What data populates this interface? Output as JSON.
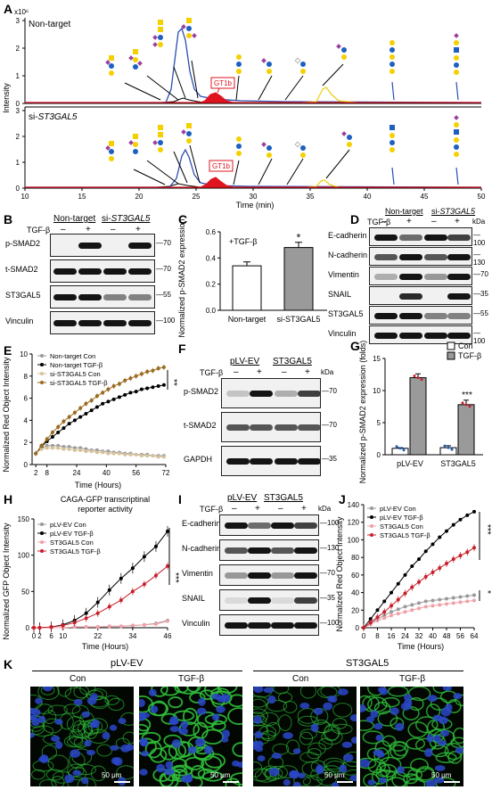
{
  "panels": {
    "A": {
      "letter": "A",
      "y_multiplier": "x10⁶",
      "ylabel": "Intensity",
      "xlabel": "Time (min)",
      "x_ticks": [
        "10",
        "15",
        "20",
        "25",
        "30",
        "35",
        "40",
        "45",
        "50"
      ],
      "y_ticks_top": [
        "0",
        "1",
        "2",
        "3"
      ],
      "y_ticks_bottom": [
        "0",
        "1",
        "2",
        "3"
      ],
      "top_label": "Non-target",
      "bottom_label_prefix": "si-",
      "bottom_label_gene": "ST3GAL5",
      "peak_label": "GT1b"
    },
    "B": {
      "letter": "B",
      "group1": "Non-target",
      "group2_prefix": "si-",
      "group2_gene": "ST3GAL5",
      "tgf_label": "TGF-β",
      "signs": [
        "–",
        "+",
        "–",
        "+"
      ],
      "rows": [
        {
          "name": "p-SMAD2",
          "kda": "70"
        },
        {
          "name": "t-SMAD2",
          "kda": "70"
        },
        {
          "name": "ST3GAL5",
          "kda": "55"
        },
        {
          "name": "Vinculin",
          "kda": "100"
        }
      ]
    },
    "C": {
      "letter": "C",
      "annotation": "+TGF-β",
      "ylabel": "Normalized p-SMAD2 expression",
      "categories": [
        "Non-target",
        "si-ST3GAL5"
      ],
      "y_ticks": [
        "0.0",
        "0.2",
        "0.4",
        "0.6"
      ],
      "significance": "*"
    },
    "D": {
      "letter": "D",
      "group1": "Non-target",
      "group2_prefix": "si-",
      "group2_gene": "ST3GAL5",
      "tgf_label": "TGF-β",
      "kda_label": "kDa",
      "signs": [
        "–",
        "+",
        "–",
        "+"
      ],
      "rows": [
        {
          "name": "E-cadherin",
          "kda": "100"
        },
        {
          "name": "N-cadherin",
          "kda": "130"
        },
        {
          "name": "Vimentin",
          "kda": "70"
        },
        {
          "name": "SNAIL",
          "kda": "35"
        },
        {
          "name": "ST3GAL5",
          "kda": "55"
        },
        {
          "name": "Vinculin",
          "kda": "100"
        }
      ]
    },
    "E": {
      "letter": "E",
      "ylabel": "Normalized Red Object Intensity",
      "xlabel": "Time (Hours)",
      "x_ticks": [
        "2",
        "8",
        "24",
        "40",
        "56",
        "72"
      ],
      "y_ticks": [
        "0",
        "2",
        "4",
        "6",
        "8",
        "10"
      ],
      "legend": [
        "Non-target Con",
        "Non-target TGF-β",
        "si-ST3GAL5 Con",
        "si-ST3GAL5 TGF-β"
      ],
      "significance": "**"
    },
    "F": {
      "letter": "F",
      "group1": "pLV-EV",
      "group2": "ST3GAL5",
      "tgf_label": "TGF-β",
      "kda_label": "kDa",
      "signs": [
        "–",
        "+",
        "–",
        "+"
      ],
      "rows": [
        {
          "name": "p-SMAD2",
          "kda": "70"
        },
        {
          "name": "t-SMAD2",
          "kda": "70"
        },
        {
          "name": "GAPDH",
          "kda": "35"
        }
      ]
    },
    "G": {
      "letter": "G",
      "ylabel": "Normalized p-SMAD2 expression (folds)",
      "categories": [
        "pLV-EV",
        "ST3GAL5"
      ],
      "legend": [
        "Con",
        "TGF-β"
      ],
      "y_ticks": [
        "0",
        "5",
        "10",
        "15"
      ],
      "significance": "***"
    },
    "H": {
      "letter": "H",
      "title_line1": "CAGA-GFP transcriptinal",
      "title_line2": "reporter activity",
      "ylabel": "Normalized GFP Object Intensity",
      "xlabel": "Time (Hours)",
      "x_ticks": [
        "0",
        "2",
        "6",
        "10",
        "22",
        "34",
        "46"
      ],
      "y_ticks": [
        "0",
        "50",
        "100",
        "150"
      ],
      "legend": [
        "pLV-EV Con",
        "pLV-EV TGF-β",
        "ST3GAL5 Con",
        "ST3GAL5 TGF-β"
      ],
      "significance": "***"
    },
    "I": {
      "letter": "I",
      "group1": "pLV-EV",
      "group2": "ST3GAL5",
      "tgf_label": "TGF-β",
      "kda_label": "kDa",
      "signs": [
        "–",
        "+",
        "–",
        "+"
      ],
      "rows": [
        {
          "name": "E-cadherin",
          "kda": "100"
        },
        {
          "name": "N-cadherin",
          "kda": "130"
        },
        {
          "name": "Vimentin",
          "kda": "70"
        },
        {
          "name": "SNAIL",
          "kda": "35"
        },
        {
          "name": "Vinculin",
          "kda": "100"
        }
      ]
    },
    "J": {
      "letter": "J",
      "ylabel": "Normalized Red Object Intensity",
      "xlabel": "Time (Hours)",
      "x_ticks": [
        "0",
        "8",
        "16",
        "24",
        "32",
        "40",
        "48",
        "56",
        "64"
      ],
      "y_ticks": [
        "0",
        "20",
        "40",
        "60",
        "80",
        "100",
        "120",
        "140"
      ],
      "legend": [
        "pLV-EV Con",
        "pLV-EV TGF-β",
        "ST3GAL5 Con",
        "ST3GAL5 TGF-β"
      ],
      "significance": "***",
      "significance2": "*"
    },
    "K": {
      "letter": "K",
      "group1": "pLV-EV",
      "group2": "ST3GAL5",
      "sub_labels": [
        "Con",
        "TGF-β",
        "Con",
        "TGF-β"
      ],
      "scale": "50 μm"
    }
  },
  "colors": {
    "blue_trace": "#2a4fb0",
    "red_peak": "#e0141e",
    "yellow_trace": "#f0d020",
    "black": "#000000",
    "gray": "#9a9a9a",
    "brown": "#9a6a1e",
    "tan": "#d6c29a",
    "red_series": "#c81e2a",
    "pink_series": "#f0a0a8",
    "glycan_yellow": "#f5d000",
    "glycan_blue": "#1f5fbf",
    "glycan_purple": "#9b3fa0"
  },
  "chart_data": [
    {
      "panel": "C",
      "type": "bar",
      "categories": [
        "Non-target",
        "si-ST3GAL5"
      ],
      "values": [
        0.34,
        0.48
      ],
      "errors": [
        0.03,
        0.04
      ],
      "ylim": [
        0,
        0.6
      ],
      "ylabel": "Normalized p-SMAD2 expression",
      "annotation": "+TGF-β"
    },
    {
      "panel": "E",
      "type": "line",
      "x": [
        2,
        5,
        8,
        11,
        14,
        17,
        20,
        23,
        26,
        29,
        32,
        35,
        38,
        41,
        44,
        47,
        50,
        53,
        56,
        59,
        62,
        65,
        68,
        71
      ],
      "ylim": [
        0,
        10
      ],
      "series": [
        {
          "name": "Non-target Con",
          "values": [
            1.0,
            1.5,
            1.7,
            1.7,
            1.7,
            1.6,
            1.6,
            1.5,
            1.5,
            1.4,
            1.3,
            1.3,
            1.2,
            1.2,
            1.1,
            1.1,
            1.0,
            1.0,
            0.9,
            0.9,
            0.9,
            0.8,
            0.8,
            0.8
          ]
        },
        {
          "name": "Non-target TGF-β",
          "values": [
            1.0,
            1.6,
            2.1,
            2.5,
            2.9,
            3.3,
            3.7,
            4.0,
            4.3,
            4.6,
            4.9,
            5.2,
            5.5,
            5.7,
            5.9,
            6.1,
            6.3,
            6.5,
            6.6,
            6.8,
            6.9,
            7.0,
            7.1,
            7.2
          ]
        },
        {
          "name": "si-ST3GAL5 Con",
          "values": [
            1.0,
            1.4,
            1.5,
            1.5,
            1.5,
            1.4,
            1.4,
            1.3,
            1.3,
            1.2,
            1.2,
            1.1,
            1.1,
            1.0,
            1.0,
            1.0,
            0.9,
            0.9,
            0.9,
            0.8,
            0.8,
            0.8,
            0.7,
            0.7
          ]
        },
        {
          "name": "si-ST3GAL5 TGF-β",
          "values": [
            1.0,
            1.7,
            2.3,
            2.9,
            3.4,
            3.9,
            4.3,
            4.7,
            5.1,
            5.5,
            5.8,
            6.2,
            6.5,
            6.8,
            7.1,
            7.3,
            7.6,
            7.8,
            8.0,
            8.2,
            8.4,
            8.5,
            8.7,
            8.8
          ]
        }
      ]
    },
    {
      "panel": "G",
      "type": "bar",
      "categories": [
        "pLV-EV",
        "ST3GAL5"
      ],
      "series": [
        {
          "name": "Con",
          "values": [
            1.0,
            1.1
          ],
          "errors": [
            0.1,
            0.3
          ]
        },
        {
          "name": "TGF-β",
          "values": [
            12.0,
            7.8
          ],
          "errors": [
            0.6,
            0.7
          ]
        }
      ],
      "ylim": [
        0,
        15
      ]
    },
    {
      "panel": "H",
      "type": "line",
      "x": [
        0,
        2,
        6,
        10,
        14,
        18,
        22,
        26,
        30,
        34,
        38,
        42,
        46
      ],
      "ylim": [
        0,
        150
      ],
      "series": [
        {
          "name": "pLV-EV Con",
          "values": [
            0,
            0,
            0,
            0,
            1,
            1,
            1,
            2,
            2,
            3,
            4,
            6,
            10
          ]
        },
        {
          "name": "pLV-EV TGF-β",
          "values": [
            0,
            0,
            1,
            4,
            10,
            20,
            35,
            52,
            68,
            82,
            98,
            112,
            133
          ]
        },
        {
          "name": "ST3GAL5 Con",
          "values": [
            0,
            0,
            0,
            0,
            1,
            1,
            1,
            2,
            2,
            3,
            4,
            5,
            9
          ]
        },
        {
          "name": "ST3GAL5 TGF-β",
          "values": [
            0,
            0,
            1,
            3,
            7,
            13,
            20,
            29,
            38,
            50,
            60,
            72,
            85
          ]
        }
      ]
    },
    {
      "panel": "J",
      "type": "line",
      "x": [
        0,
        4,
        8,
        12,
        16,
        20,
        24,
        28,
        32,
        36,
        40,
        44,
        48,
        52,
        56,
        60,
        64
      ],
      "ylim": [
        0,
        140
      ],
      "series": [
        {
          "name": "pLV-EV Con",
          "values": [
            0,
            5,
            10,
            14,
            18,
            21,
            24,
            26,
            28,
            30,
            31,
            32,
            33,
            34,
            35,
            36,
            37
          ]
        },
        {
          "name": "pLV-EV TGF-β",
          "values": [
            0,
            10,
            20,
            30,
            40,
            50,
            60,
            70,
            78,
            87,
            95,
            103,
            110,
            117,
            123,
            128,
            132
          ]
        },
        {
          "name": "ST3GAL5 Con",
          "values": [
            0,
            4,
            8,
            11,
            14,
            16,
            18,
            20,
            22,
            24,
            25,
            26,
            27,
            28,
            29,
            30,
            31
          ]
        },
        {
          "name": "ST3GAL5 TGF-β",
          "values": [
            0,
            6,
            12,
            18,
            25,
            32,
            39,
            46,
            52,
            58,
            63,
            68,
            73,
            78,
            82,
            86,
            91
          ]
        }
      ]
    }
  ]
}
